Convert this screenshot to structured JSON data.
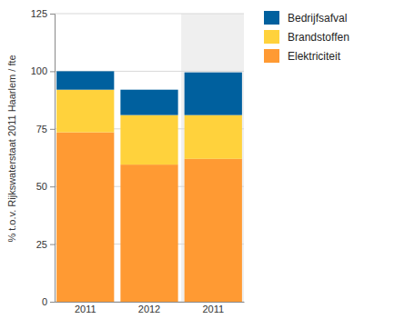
{
  "chart_data": {
    "type": "bar",
    "stacked": true,
    "ylabel": "% t.o.v. Rijkswaterstaat 2011 Haarlem / fte",
    "categories": [
      "2011",
      "2012",
      "2011"
    ],
    "series": [
      {
        "name": "Bedrijfsafval",
        "color": "#00609e",
        "values": [
          8,
          11,
          18.5
        ]
      },
      {
        "name": "Brandstoffen",
        "color": "#ffd23c",
        "values": [
          18.5,
          21.5,
          19
        ]
      },
      {
        "name": "Elektriciteit",
        "color": "#ff9a33",
        "values": [
          73.5,
          59.5,
          62
        ]
      }
    ],
    "ylim": [
      0,
      125
    ],
    "yticks": [
      0,
      25,
      50,
      75,
      100,
      125
    ],
    "grid": true,
    "legend": "right"
  }
}
